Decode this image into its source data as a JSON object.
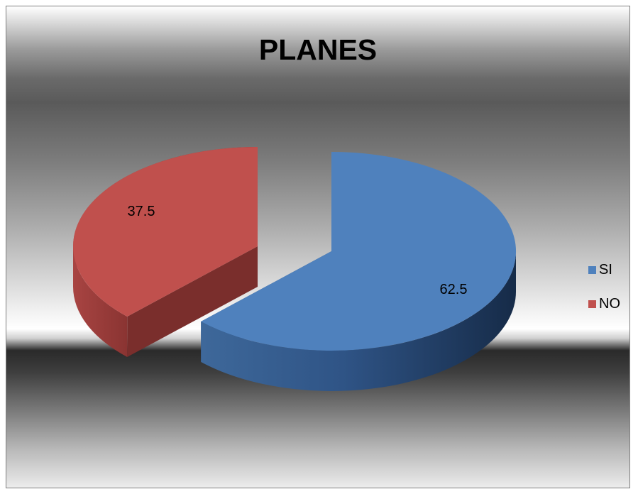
{
  "chart_data": {
    "type": "pie",
    "style": "3d-exploded",
    "title": "PLANES",
    "categories": [
      "SI",
      "NO"
    ],
    "values": [
      62.5,
      37.5
    ],
    "data_labels": [
      "62.5",
      "37.5"
    ],
    "colors": [
      "#4f81bd",
      "#c0504d"
    ],
    "legend_position": "right"
  }
}
